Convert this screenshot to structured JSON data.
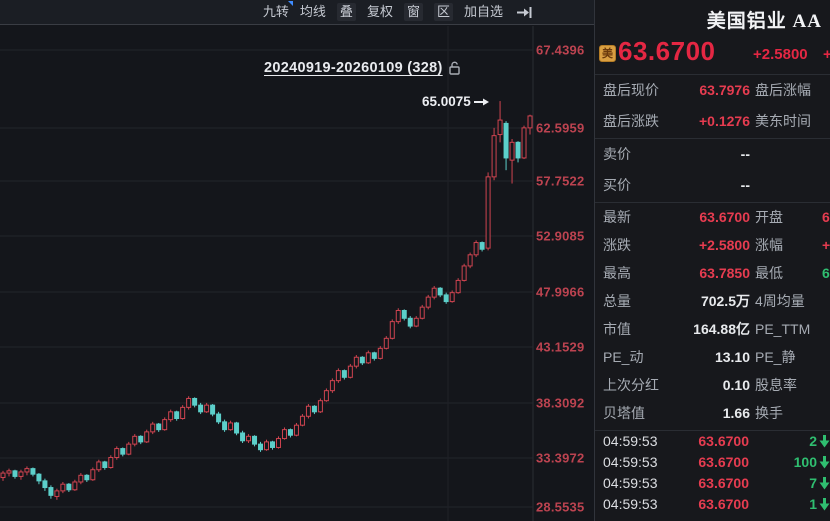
{
  "toolbar": {
    "items": [
      {
        "label": "九转",
        "badge": true,
        "boxed": false
      },
      {
        "label": "均线",
        "badge": false,
        "boxed": false
      },
      {
        "label": "叠",
        "badge": false,
        "boxed": true
      },
      {
        "label": "复权",
        "badge": false,
        "boxed": false
      },
      {
        "label": "窗",
        "badge": false,
        "boxed": true
      },
      {
        "label": "区",
        "badge": false,
        "boxed": true
      },
      {
        "label": "加自选",
        "badge": false,
        "boxed": false
      }
    ],
    "collapse_icon": "arrow-to-bar-icon"
  },
  "chart": {
    "range_label": "20240919-20260109 (328)",
    "lock_icon": "unlock-icon",
    "high_annotation": "65.0075",
    "chart_data": {
      "type": "candlestick",
      "date_range": "20240919-20260109",
      "bars_in_range": 328,
      "high_annotation_value": 65.0075,
      "last_close": 63.67,
      "y_ticks": [
        "67.4396",
        "62.5959",
        "57.7522",
        "52.9085",
        "47.9966",
        "43.1529",
        "38.3092",
        "33.3972",
        "28.5535"
      ],
      "ylim": [
        28.5535,
        67.4396
      ],
      "grid": true,
      "up_color": "#cf4450",
      "down_color": "#5ccfca",
      "candles_ohlc": [
        [
          31.2,
          31.8,
          30.9,
          31.6
        ],
        [
          31.6,
          32.0,
          31.3,
          31.8
        ],
        [
          31.8,
          31.9,
          31.1,
          31.3
        ],
        [
          31.3,
          31.9,
          31.0,
          31.7
        ],
        [
          31.7,
          32.2,
          31.4,
          32.0
        ],
        [
          32.0,
          32.1,
          31.3,
          31.5
        ],
        [
          31.5,
          31.6,
          30.6,
          30.9
        ],
        [
          30.9,
          31.1,
          30.0,
          30.3
        ],
        [
          30.3,
          30.5,
          29.3,
          29.6
        ],
        [
          29.5,
          30.2,
          29.2,
          30.0
        ],
        [
          30.0,
          30.8,
          29.8,
          30.6
        ],
        [
          30.6,
          30.7,
          29.9,
          30.1
        ],
        [
          30.1,
          31.0,
          30.0,
          30.8
        ],
        [
          30.8,
          31.6,
          30.6,
          31.4
        ],
        [
          31.4,
          31.5,
          30.8,
          31.0
        ],
        [
          31.0,
          32.1,
          30.9,
          31.9
        ],
        [
          31.9,
          32.8,
          31.7,
          32.6
        ],
        [
          32.6,
          32.7,
          31.9,
          32.1
        ],
        [
          32.1,
          33.2,
          32.0,
          33.0
        ],
        [
          33.0,
          34.0,
          32.8,
          33.8
        ],
        [
          33.8,
          33.9,
          33.1,
          33.3
        ],
        [
          33.3,
          34.4,
          33.2,
          34.2
        ],
        [
          34.2,
          35.1,
          34.0,
          34.9
        ],
        [
          34.9,
          35.0,
          34.2,
          34.4
        ],
        [
          34.4,
          35.5,
          34.3,
          35.3
        ],
        [
          35.3,
          36.2,
          35.1,
          36.0
        ],
        [
          36.0,
          36.1,
          35.3,
          35.5
        ],
        [
          35.5,
          36.6,
          35.4,
          36.4
        ],
        [
          36.4,
          37.3,
          36.2,
          37.1
        ],
        [
          37.1,
          37.2,
          36.3,
          36.5
        ],
        [
          36.5,
          37.7,
          36.4,
          37.5
        ],
        [
          37.5,
          38.5,
          37.3,
          38.3
        ],
        [
          38.3,
          38.4,
          37.5,
          37.7
        ],
        [
          37.7,
          37.9,
          36.9,
          37.1
        ],
        [
          37.1,
          37.9,
          37.0,
          37.7
        ],
        [
          37.7,
          37.8,
          36.7,
          36.9
        ],
        [
          36.9,
          37.1,
          36.0,
          36.2
        ],
        [
          36.2,
          36.4,
          35.3,
          35.5
        ],
        [
          35.5,
          36.3,
          35.4,
          36.1
        ],
        [
          36.1,
          36.2,
          35.0,
          35.2
        ],
        [
          35.2,
          35.4,
          34.3,
          34.5
        ],
        [
          34.5,
          35.1,
          34.3,
          34.9
        ],
        [
          34.9,
          35.0,
          34.0,
          34.2
        ],
        [
          34.2,
          34.4,
          33.5,
          33.7
        ],
        [
          33.7,
          34.6,
          33.6,
          34.4
        ],
        [
          34.4,
          34.5,
          33.7,
          33.9
        ],
        [
          33.9,
          34.9,
          33.8,
          34.7
        ],
        [
          34.7,
          35.7,
          34.6,
          35.5
        ],
        [
          35.5,
          35.6,
          34.8,
          35.0
        ],
        [
          35.0,
          36.1,
          34.9,
          35.9
        ],
        [
          35.9,
          36.9,
          35.8,
          36.7
        ],
        [
          36.7,
          37.8,
          36.5,
          37.6
        ],
        [
          37.6,
          37.7,
          36.9,
          37.1
        ],
        [
          37.1,
          38.3,
          37.0,
          38.1
        ],
        [
          38.1,
          39.2,
          38.0,
          39.0
        ],
        [
          39.0,
          40.1,
          38.8,
          39.9
        ],
        [
          39.9,
          41.0,
          39.7,
          40.8
        ],
        [
          40.8,
          40.9,
          40.0,
          40.2
        ],
        [
          40.2,
          41.4,
          40.1,
          41.2
        ],
        [
          41.2,
          42.2,
          41.0,
          42.0
        ],
        [
          42.0,
          42.1,
          41.3,
          41.5
        ],
        [
          41.5,
          42.6,
          41.4,
          42.4
        ],
        [
          42.4,
          42.5,
          41.7,
          41.9
        ],
        [
          41.9,
          43.0,
          41.8,
          42.8
        ],
        [
          42.8,
          43.9,
          42.7,
          43.7
        ],
        [
          43.7,
          45.4,
          43.6,
          45.2
        ],
        [
          45.2,
          46.4,
          45.0,
          46.2
        ],
        [
          46.2,
          46.3,
          45.3,
          45.5
        ],
        [
          45.5,
          45.7,
          44.6,
          44.8
        ],
        [
          44.8,
          45.7,
          44.7,
          45.5
        ],
        [
          45.5,
          46.7,
          45.4,
          46.5
        ],
        [
          46.5,
          47.6,
          46.3,
          47.4
        ],
        [
          47.4,
          48.4,
          47.2,
          48.2
        ],
        [
          48.2,
          48.3,
          47.4,
          47.6
        ],
        [
          47.6,
          47.8,
          46.8,
          47.0
        ],
        [
          47.0,
          48.0,
          46.9,
          47.8
        ],
        [
          47.8,
          49.1,
          47.7,
          48.9
        ],
        [
          48.9,
          50.4,
          48.8,
          50.2
        ],
        [
          50.2,
          51.4,
          50.0,
          51.2
        ],
        [
          51.2,
          52.5,
          51.0,
          52.3
        ],
        [
          52.3,
          52.4,
          51.5,
          51.7
        ],
        [
          51.8,
          58.6,
          51.6,
          58.2
        ],
        [
          58.2,
          62.6,
          57.9,
          61.9
        ],
        [
          62.0,
          65.0075,
          61.3,
          63.3
        ],
        [
          63.0,
          63.2,
          58.8,
          59.9
        ],
        [
          59.7,
          61.6,
          57.6,
          61.3
        ],
        [
          61.3,
          61.4,
          59.5,
          59.9
        ],
        [
          59.9,
          62.8,
          59.8,
          62.6
        ],
        [
          62.6,
          63.785,
          62.0,
          63.67
        ]
      ]
    }
  },
  "quote_panel": {
    "title": "美国铝业 AA",
    "market_badge": "美",
    "price": "63.6700",
    "change": "+2.5800",
    "change_pct_sliver": "+",
    "after_hours": [
      {
        "label": "盘后现价",
        "value": "63.7976",
        "label2": "盘后涨幅"
      },
      {
        "label": "盘后涨跌",
        "value": "+0.1276",
        "label2": "美东时间"
      }
    ],
    "bid_ask": [
      {
        "label": "卖价",
        "value": "--"
      },
      {
        "label": "买价",
        "value": "--"
      }
    ],
    "stats": [
      {
        "label": "最新",
        "value": "63.6700",
        "vcolor": "c-red",
        "label2": "开盘",
        "value2": "6",
        "v2color": "c-red"
      },
      {
        "label": "涨跌",
        "value": "+2.5800",
        "vcolor": "c-red",
        "label2": "涨幅",
        "value2": "+",
        "v2color": "c-red"
      },
      {
        "label": "最高",
        "value": "63.7850",
        "vcolor": "c-red",
        "label2": "最低",
        "value2": "6",
        "v2color": "c-green"
      },
      {
        "label": "总量",
        "value": "702.5万",
        "vcolor": "c-white",
        "label2": "4周均量",
        "value2": "",
        "v2color": "c-white"
      },
      {
        "label": "市值",
        "value": "164.88亿",
        "vcolor": "c-white",
        "label2": "PE_TTM",
        "value2": "",
        "v2color": "c-white"
      },
      {
        "label": "PE_动",
        "value": "13.10",
        "vcolor": "c-white",
        "label2": "PE_静",
        "value2": "",
        "v2color": "c-white"
      },
      {
        "label": "上次分红",
        "value": "0.10",
        "vcolor": "c-white",
        "label2": "股息率",
        "value2": "",
        "v2color": "c-white"
      },
      {
        "label": "贝塔值",
        "value": "1.66",
        "vcolor": "c-white",
        "label2": "换手",
        "value2": "",
        "v2color": "c-white"
      }
    ],
    "time_sales": [
      {
        "time": "04:59:53",
        "price": "63.6700",
        "volume": "2",
        "direction": "down"
      },
      {
        "time": "04:59:53",
        "price": "63.6700",
        "volume": "100",
        "direction": "down"
      },
      {
        "time": "04:59:53",
        "price": "63.6700",
        "volume": "7",
        "direction": "down"
      },
      {
        "time": "04:59:53",
        "price": "63.6700",
        "volume": "1",
        "direction": "down"
      }
    ]
  },
  "colors": {
    "up_red": "#e63c50",
    "down_cyan": "#5ccfca",
    "green": "#2fbe70",
    "axis_red": "#bc4350",
    "badge_orange": "#d99f42"
  }
}
